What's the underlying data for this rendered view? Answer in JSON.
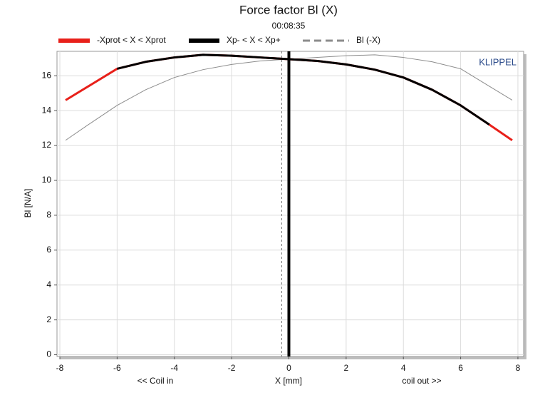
{
  "chart_data": {
    "type": "line",
    "title": "Force factor Bl (X)",
    "subtitle": "00:08:35",
    "x_label": "X [mm]",
    "y_label": "Bl [N/A]",
    "annotations": [
      "<< Coil in",
      "coil out >>"
    ],
    "brand": "KLIPPEL",
    "x": [
      -7.8,
      -7,
      -6,
      -5,
      -4,
      -3,
      -2,
      -1,
      0,
      1,
      2,
      3,
      4,
      5,
      6,
      7,
      7.8
    ],
    "series": [
      {
        "name": "-Xprot < X < Xprot",
        "color": "#e8201a",
        "width": 3,
        "dash": "none",
        "values": [
          14.6,
          15.4,
          16.4,
          16.8,
          17.05,
          17.2,
          17.15,
          17.05,
          16.95,
          16.85,
          16.65,
          16.35,
          15.9,
          15.2,
          14.3,
          13.2,
          12.3
        ]
      },
      {
        "name": "Xp- < X < Xp+",
        "color": "#000000",
        "width": 3,
        "dash": "none",
        "values": [
          null,
          null,
          16.4,
          16.8,
          17.05,
          17.2,
          17.15,
          17.05,
          16.95,
          16.85,
          16.65,
          16.35,
          15.9,
          15.2,
          14.3,
          13.2,
          null
        ]
      },
      {
        "name": "Bl (-X)",
        "color": "#8c8c8c",
        "width": 1,
        "dash": "10 6",
        "values": [
          12.3,
          13.2,
          14.3,
          15.2,
          15.9,
          16.35,
          16.65,
          16.85,
          16.95,
          17.05,
          17.15,
          17.2,
          17.05,
          16.8,
          16.4,
          15.4,
          14.6
        ]
      }
    ],
    "markers": [
      {
        "x": 0,
        "color": "#000000",
        "width": 4,
        "dash": "none"
      },
      {
        "x": -0.25,
        "color": "#777777",
        "width": 1,
        "dash": "3 3"
      }
    ],
    "xlim": [
      -8.1,
      8.2
    ],
    "ylim": [
      -0.1,
      17.4
    ],
    "xticks": [
      -8,
      -6,
      -4,
      -2,
      0,
      2,
      4,
      6,
      8
    ],
    "yticks": [
      0,
      2,
      4,
      6,
      8,
      10,
      12,
      14,
      16
    ],
    "grid": true
  }
}
